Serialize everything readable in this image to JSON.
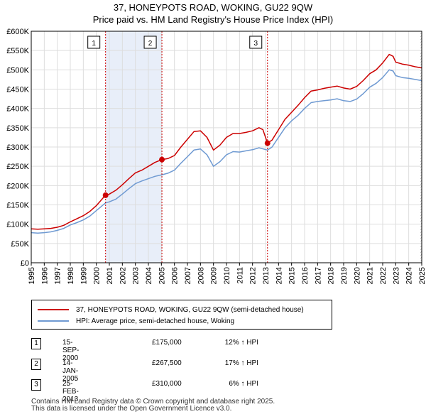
{
  "chart_data": {
    "type": "line",
    "title": "37, HONEYPOTS ROAD, WOKING, GU22 9QW",
    "subtitle": "Price paid vs. HM Land Registry's House Price Index (HPI)",
    "x_range": [
      1995,
      2025
    ],
    "ylim": [
      0,
      600000
    ],
    "x_ticks": [
      "1995",
      "1996",
      "1997",
      "1998",
      "1999",
      "2000",
      "2001",
      "2002",
      "2003",
      "2004",
      "2005",
      "2006",
      "2007",
      "2008",
      "2009",
      "2010",
      "2011",
      "2012",
      "2013",
      "2014",
      "2015",
      "2016",
      "2017",
      "2018",
      "2019",
      "2020",
      "2021",
      "2022",
      "2023",
      "2024",
      "2025"
    ],
    "y_ticks": [
      {
        "value": 0,
        "label": "£0"
      },
      {
        "value": 50000,
        "label": "£50K"
      },
      {
        "value": 100000,
        "label": "£100K"
      },
      {
        "value": 150000,
        "label": "£150K"
      },
      {
        "value": 200000,
        "label": "£200K"
      },
      {
        "value": 250000,
        "label": "£250K"
      },
      {
        "value": 300000,
        "label": "£300K"
      },
      {
        "value": 350000,
        "label": "£350K"
      },
      {
        "value": 400000,
        "label": "£400K"
      },
      {
        "value": 450000,
        "label": "£450K"
      },
      {
        "value": 500000,
        "label": "£500K"
      },
      {
        "value": 550000,
        "label": "£550K"
      },
      {
        "value": 600000,
        "label": "£600K"
      }
    ],
    "series": [
      {
        "name": "37, HONEYPOTS ROAD, WOKING, GU22 9QW (semi-detached house)",
        "color": "#cc0000",
        "points": [
          [
            1995,
            88000
          ],
          [
            1995.5,
            87000
          ],
          [
            1996,
            88000
          ],
          [
            1996.5,
            89000
          ],
          [
            1997,
            92000
          ],
          [
            1997.5,
            97000
          ],
          [
            1998,
            106000
          ],
          [
            1998.5,
            114000
          ],
          [
            1999,
            122000
          ],
          [
            1999.5,
            133000
          ],
          [
            2000,
            148000
          ],
          [
            2000.7,
            175000
          ],
          [
            2001,
            178000
          ],
          [
            2001.5,
            188000
          ],
          [
            2002,
            202000
          ],
          [
            2002.5,
            218000
          ],
          [
            2003,
            233000
          ],
          [
            2003.5,
            240000
          ],
          [
            2004,
            250000
          ],
          [
            2004.5,
            260000
          ],
          [
            2005.04,
            267500
          ],
          [
            2005.5,
            270000
          ],
          [
            2006,
            278000
          ],
          [
            2006.5,
            300000
          ],
          [
            2007,
            320000
          ],
          [
            2007.5,
            340000
          ],
          [
            2008,
            342000
          ],
          [
            2008.5,
            325000
          ],
          [
            2009,
            292000
          ],
          [
            2009.5,
            305000
          ],
          [
            2010,
            325000
          ],
          [
            2010.5,
            335000
          ],
          [
            2011,
            335000
          ],
          [
            2011.5,
            338000
          ],
          [
            2012,
            342000
          ],
          [
            2012.5,
            350000
          ],
          [
            2012.8,
            345000
          ],
          [
            2013.15,
            310000
          ],
          [
            2013.5,
            318000
          ],
          [
            2014,
            345000
          ],
          [
            2014.5,
            372000
          ],
          [
            2015,
            390000
          ],
          [
            2015.5,
            408000
          ],
          [
            2016,
            428000
          ],
          [
            2016.5,
            445000
          ],
          [
            2017,
            448000
          ],
          [
            2017.5,
            452000
          ],
          [
            2018,
            455000
          ],
          [
            2018.5,
            458000
          ],
          [
            2019,
            453000
          ],
          [
            2019.5,
            450000
          ],
          [
            2020,
            457000
          ],
          [
            2020.5,
            472000
          ],
          [
            2021,
            490000
          ],
          [
            2021.5,
            500000
          ],
          [
            2022,
            518000
          ],
          [
            2022.5,
            540000
          ],
          [
            2022.8,
            535000
          ],
          [
            2023,
            520000
          ],
          [
            2023.5,
            515000
          ],
          [
            2024,
            512000
          ],
          [
            2024.5,
            508000
          ],
          [
            2025,
            505000
          ]
        ]
      },
      {
        "name": "HPI: Average price, semi-detached house, Woking",
        "color": "#6f9ad2",
        "points": [
          [
            1995,
            78000
          ],
          [
            1995.5,
            77000
          ],
          [
            1996,
            78000
          ],
          [
            1996.5,
            80000
          ],
          [
            1997,
            84000
          ],
          [
            1997.5,
            89000
          ],
          [
            1998,
            98000
          ],
          [
            1998.5,
            104000
          ],
          [
            1999,
            111000
          ],
          [
            1999.5,
            121000
          ],
          [
            2000,
            135000
          ],
          [
            2000.7,
            155000
          ],
          [
            2001,
            158000
          ],
          [
            2001.5,
            165000
          ],
          [
            2002,
            178000
          ],
          [
            2002.5,
            192000
          ],
          [
            2003,
            205000
          ],
          [
            2003.5,
            212000
          ],
          [
            2004,
            218000
          ],
          [
            2004.5,
            224000
          ],
          [
            2005.04,
            228000
          ],
          [
            2005.5,
            232000
          ],
          [
            2006,
            240000
          ],
          [
            2006.5,
            258000
          ],
          [
            2007,
            275000
          ],
          [
            2007.5,
            292000
          ],
          [
            2008,
            295000
          ],
          [
            2008.5,
            280000
          ],
          [
            2009,
            250000
          ],
          [
            2009.5,
            262000
          ],
          [
            2010,
            280000
          ],
          [
            2010.5,
            288000
          ],
          [
            2011,
            287000
          ],
          [
            2011.5,
            290000
          ],
          [
            2012,
            293000
          ],
          [
            2012.5,
            298000
          ],
          [
            2013.15,
            292000
          ],
          [
            2013.5,
            300000
          ],
          [
            2014,
            325000
          ],
          [
            2014.5,
            350000
          ],
          [
            2015,
            368000
          ],
          [
            2015.5,
            382000
          ],
          [
            2016,
            400000
          ],
          [
            2016.5,
            415000
          ],
          [
            2017,
            418000
          ],
          [
            2017.5,
            420000
          ],
          [
            2018,
            422000
          ],
          [
            2018.5,
            425000
          ],
          [
            2019,
            420000
          ],
          [
            2019.5,
            418000
          ],
          [
            2020,
            424000
          ],
          [
            2020.5,
            438000
          ],
          [
            2021,
            455000
          ],
          [
            2021.5,
            465000
          ],
          [
            2022,
            480000
          ],
          [
            2022.5,
            500000
          ],
          [
            2022.8,
            497000
          ],
          [
            2023,
            485000
          ],
          [
            2023.5,
            480000
          ],
          [
            2024,
            478000
          ],
          [
            2024.5,
            475000
          ],
          [
            2025,
            472000
          ]
        ]
      }
    ],
    "sales": [
      {
        "label": "1",
        "x": 2000.71,
        "value": 175000
      },
      {
        "label": "2",
        "x": 2005.04,
        "value": 267500
      },
      {
        "label": "3",
        "x": 2013.15,
        "value": 310000
      }
    ],
    "shaded_ranges": [
      [
        2000.71,
        2005.04
      ]
    ],
    "hatched_after": 2025
  },
  "legend": {
    "property_label": "37, HONEYPOTS ROAD, WOKING, GU22 9QW (semi-detached house)",
    "hpi_label": "HPI: Average price, semi-detached house, Woking"
  },
  "sales_table": [
    {
      "num": "1",
      "date": "15-SEP-2000",
      "price": "£175,000",
      "hpi": "12% ↑ HPI"
    },
    {
      "num": "2",
      "date": "14-JAN-2005",
      "price": "£267,500",
      "hpi": "17% ↑ HPI"
    },
    {
      "num": "3",
      "date": "25-FEB-2013",
      "price": "£310,000",
      "hpi": "6% ↑ HPI"
    }
  ],
  "footer": {
    "line1": "Contains HM Land Registry data © Crown copyright and database right 2025.",
    "line2": "This data is licensed under the Open Government Licence v3.0."
  },
  "colors": {
    "property": "#cc0000",
    "hpi": "#6f9ad2",
    "shade": "#e8eef9",
    "grid": "#dddddd"
  }
}
